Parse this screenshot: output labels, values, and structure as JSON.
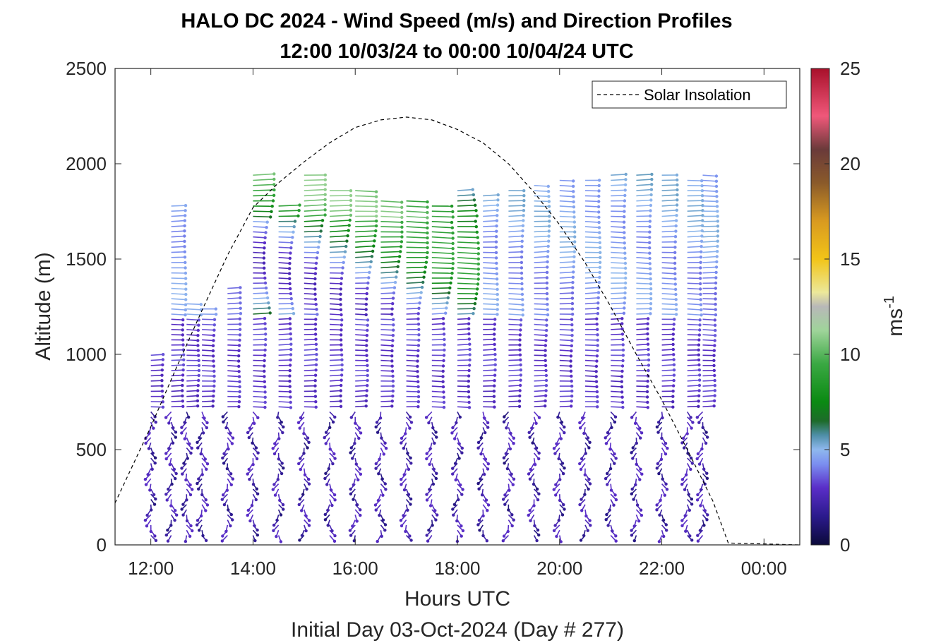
{
  "title_line1": "HALO DC 2024 - Wind Speed (m/s) and Direction Profiles",
  "title_line2": "12:00 10/03/24 to 00:00 10/04/24  UTC",
  "xlabel": "Hours UTC",
  "subtitle": "Initial Day 03-Oct-2024 (Day # 277)",
  "ylabel": "Altitude (m)",
  "colorbar_label": "ms",
  "colorbar_label_exp": "-1",
  "legend": {
    "label": "Solar Insolation"
  },
  "chart_data": {
    "type": "quiver",
    "title": "HALO DC 2024 - Wind Speed (m/s) and Direction Profiles",
    "xlabel": "Hours UTC",
    "ylabel": "Altitude (m)",
    "xlim_hours": [
      11.3,
      24.7
    ],
    "ylim": [
      0,
      2500
    ],
    "x_ticks": [
      {
        "value": 12,
        "label": "12:00"
      },
      {
        "value": 14,
        "label": "14:00"
      },
      {
        "value": 16,
        "label": "16:00"
      },
      {
        "value": 18,
        "label": "18:00"
      },
      {
        "value": 20,
        "label": "20:00"
      },
      {
        "value": 22,
        "label": "22:00"
      },
      {
        "value": 24,
        "label": "00:00"
      }
    ],
    "y_ticks": [
      0,
      500,
      1000,
      1500,
      2000,
      2500
    ],
    "colorbar": {
      "label": "ms-1",
      "range": [
        0,
        25
      ],
      "ticks": [
        0,
        5,
        10,
        15,
        20,
        25
      ],
      "colormap": "dark blue-purple-light blue-teal-green-light green-gray-yellow-orange-brown-pink-red"
    },
    "solar_insolation_curve": {
      "name": "Solar Insolation",
      "style": "dashed",
      "color": "#000000",
      "points": [
        {
          "x": 11.3,
          "y": 220
        },
        {
          "x": 12.0,
          "y": 620
        },
        {
          "x": 12.5,
          "y": 930
        },
        {
          "x": 13.0,
          "y": 1230
        },
        {
          "x": 13.5,
          "y": 1520
        },
        {
          "x": 14.0,
          "y": 1770
        },
        {
          "x": 14.5,
          "y": 1900
        },
        {
          "x": 15.0,
          "y": 2010
        },
        {
          "x": 15.5,
          "y": 2110
        },
        {
          "x": 16.0,
          "y": 2190
        },
        {
          "x": 16.5,
          "y": 2230
        },
        {
          "x": 17.0,
          "y": 2245
        },
        {
          "x": 17.5,
          "y": 2230
        },
        {
          "x": 18.0,
          "y": 2180
        },
        {
          "x": 18.5,
          "y": 2110
        },
        {
          "x": 19.0,
          "y": 2000
        },
        {
          "x": 19.5,
          "y": 1850
        },
        {
          "x": 20.0,
          "y": 1680
        },
        {
          "x": 20.5,
          "y": 1480
        },
        {
          "x": 21.0,
          "y": 1250
        },
        {
          "x": 21.5,
          "y": 1000
        },
        {
          "x": 22.0,
          "y": 760
        },
        {
          "x": 22.5,
          "y": 500
        },
        {
          "x": 23.0,
          "y": 230
        },
        {
          "x": 23.3,
          "y": 10
        },
        {
          "x": 24.7,
          "y": 0
        }
      ]
    },
    "wind_profiles": [
      {
        "time": 12.0,
        "top": 1020,
        "shear": "weak"
      },
      {
        "time": 12.4,
        "top": 1780,
        "shear": "variable"
      },
      {
        "time": 12.7,
        "top": 1290,
        "shear": "weak"
      },
      {
        "time": 13.0,
        "top": 1260,
        "shear": "weak"
      },
      {
        "time": 13.5,
        "top": 1360,
        "shear": "weak"
      },
      {
        "time": 14.0,
        "top": 1960,
        "shear": "strong"
      },
      {
        "time": 14.5,
        "top": 1780,
        "shear": "strong"
      },
      {
        "time": 15.0,
        "top": 1950,
        "shear": "strong"
      },
      {
        "time": 15.5,
        "top": 1880,
        "shear": "strong"
      },
      {
        "time": 16.0,
        "top": 1870,
        "shear": "strong"
      },
      {
        "time": 16.5,
        "top": 1830,
        "shear": "strong"
      },
      {
        "time": 17.0,
        "top": 1820,
        "shear": "strong"
      },
      {
        "time": 17.5,
        "top": 1790,
        "shear": "strong"
      },
      {
        "time": 18.0,
        "top": 1860,
        "shear": "moderate"
      },
      {
        "time": 18.5,
        "top": 1850,
        "shear": "moderate"
      },
      {
        "time": 19.0,
        "top": 1870,
        "shear": "moderate"
      },
      {
        "time": 19.5,
        "top": 1900,
        "shear": "moderate"
      },
      {
        "time": 20.0,
        "top": 1920,
        "shear": "moderate"
      },
      {
        "time": 20.5,
        "top": 1930,
        "shear": "moderate"
      },
      {
        "time": 21.0,
        "top": 1950,
        "shear": "moderate"
      },
      {
        "time": 21.5,
        "top": 1950,
        "shear": "moderate"
      },
      {
        "time": 22.0,
        "top": 1940,
        "shear": "moderate"
      },
      {
        "time": 22.5,
        "top": 1930,
        "shear": "moderate"
      },
      {
        "time": 22.8,
        "top": 1950,
        "shear": "moderate"
      }
    ]
  }
}
